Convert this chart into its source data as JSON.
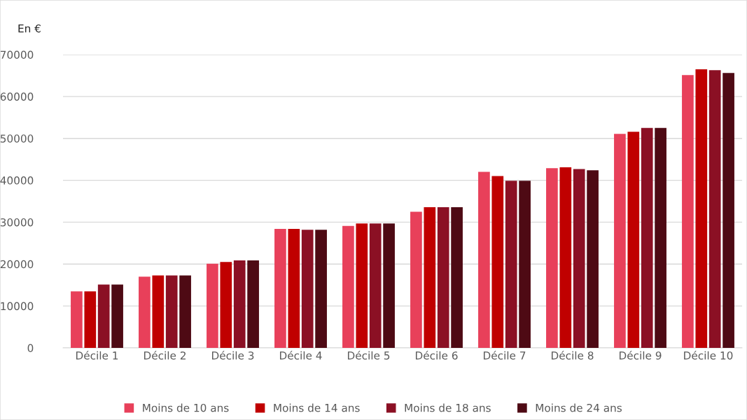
{
  "chart_data": {
    "type": "bar",
    "ylabel": "En €",
    "categories": [
      "Décile 1",
      "Décile 2",
      "Décile 3",
      "Décile 4",
      "Décile 5",
      "Décile 6",
      "Décile 7",
      "Décile 8",
      "Décile 9",
      "Décile 10"
    ],
    "series": [
      {
        "name": "Moins de 10 ans",
        "color": "#e8405a",
        "values": [
          13500,
          17000,
          20100,
          28400,
          29100,
          32500,
          42000,
          42900,
          51100,
          65100
        ]
      },
      {
        "name": "Moins de 14 ans",
        "color": "#c00000",
        "values": [
          13500,
          17300,
          20500,
          28400,
          29700,
          33600,
          41000,
          43100,
          51600,
          66500
        ]
      },
      {
        "name": "Moins de 18 ans",
        "color": "#8b1024",
        "values": [
          15100,
          17300,
          20900,
          28200,
          29700,
          33600,
          39900,
          42700,
          52500,
          66300
        ]
      },
      {
        "name": "Moins de 24 ans",
        "color": "#4e0a14",
        "values": [
          15100,
          17300,
          20900,
          28200,
          29700,
          33600,
          39900,
          42400,
          52500,
          65600
        ]
      }
    ],
    "ylim": [
      0,
      70000
    ],
    "yticks": [
      0,
      10000,
      20000,
      30000,
      40000,
      50000,
      60000,
      70000
    ],
    "grid": "y",
    "legend": "bottom"
  }
}
